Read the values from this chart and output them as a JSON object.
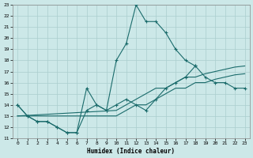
{
  "bg_color": "#cce8e8",
  "line_color": "#1a6b6b",
  "grid_color": "#aacece",
  "xlabel": "Humidex (Indice chaleur)",
  "xlim": [
    -0.5,
    23.5
  ],
  "ylim": [
    11,
    23
  ],
  "xticks": [
    0,
    1,
    2,
    3,
    4,
    5,
    6,
    7,
    8,
    9,
    10,
    11,
    12,
    13,
    14,
    15,
    16,
    17,
    18,
    19,
    20,
    21,
    22,
    23
  ],
  "yticks": [
    11,
    12,
    13,
    14,
    15,
    16,
    17,
    18,
    19,
    20,
    21,
    22,
    23
  ],
  "series": [
    {
      "x": [
        0,
        1,
        2,
        3,
        4,
        5,
        6,
        7,
        8,
        9,
        10,
        11,
        12,
        13,
        14,
        15,
        16,
        17,
        18
      ],
      "y": [
        14,
        13,
        12.5,
        12.5,
        12,
        11.5,
        11.5,
        13.5,
        14,
        13.5,
        18,
        19.5,
        23,
        21.5,
        21.5,
        20.5,
        19,
        18,
        17.5
      ],
      "marker": true
    },
    {
      "x": [
        0,
        1,
        2,
        3,
        4,
        5,
        6,
        7,
        8,
        9,
        10,
        11,
        12,
        13,
        14,
        15,
        16,
        17,
        18,
        19,
        20,
        21,
        22,
        23
      ],
      "y": [
        14,
        13,
        12.5,
        12.5,
        12,
        11.5,
        11.5,
        15.5,
        14,
        13.5,
        14,
        14.5,
        14,
        13.5,
        14.5,
        15.5,
        16,
        16.5,
        17.5,
        16.5,
        16,
        16,
        15.5,
        15.5
      ],
      "marker": true
    },
    {
      "x": [
        0,
        10,
        11,
        12,
        13,
        14,
        15,
        16,
        17,
        18,
        19,
        20,
        21,
        22,
        23
      ],
      "y": [
        13,
        13.5,
        14,
        14.5,
        15,
        15.5,
        15.5,
        16,
        16.5,
        16.5,
        16.8,
        17,
        17.2,
        17.4,
        17.5
      ],
      "marker": false
    },
    {
      "x": [
        0,
        10,
        11,
        12,
        13,
        14,
        15,
        16,
        17,
        18,
        19,
        20,
        21,
        22,
        23
      ],
      "y": [
        13,
        13,
        13.5,
        14,
        14,
        14.5,
        15,
        15.5,
        15.5,
        16,
        16,
        16.3,
        16.5,
        16.7,
        16.8
      ],
      "marker": false
    }
  ]
}
